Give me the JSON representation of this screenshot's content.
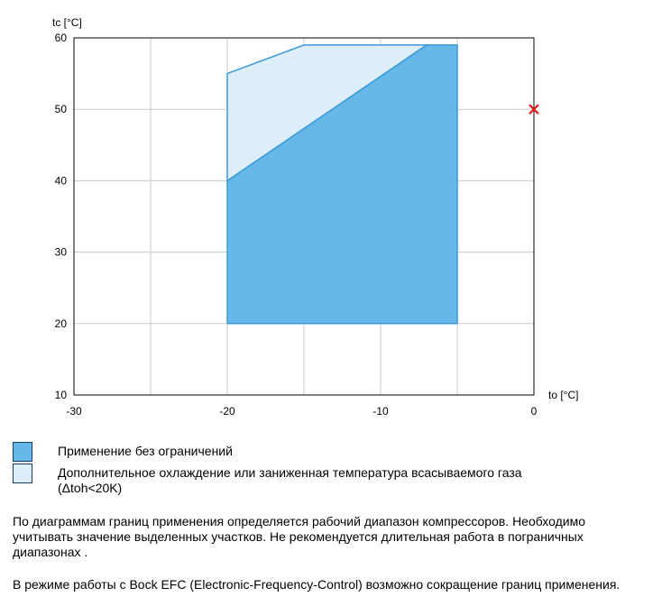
{
  "chart_data": {
    "type": "area",
    "xlabel": "to [°C]",
    "ylabel": "tc [°C]",
    "xlim": [
      -30,
      0
    ],
    "ylim": [
      10,
      60
    ],
    "xticks": [
      -30,
      -20,
      -10,
      0
    ],
    "yticks": [
      10,
      20,
      30,
      40,
      50,
      60
    ],
    "xgrid": [
      -25,
      -20,
      -15,
      -10,
      -5
    ],
    "ygrid": [
      20,
      30,
      40,
      50
    ],
    "grid": true,
    "regions": [
      {
        "name": "Применение без ограничений",
        "color": "#66b8e8",
        "points": [
          [
            -20,
            20
          ],
          [
            -5,
            20
          ],
          [
            -5,
            59
          ],
          [
            -7,
            59
          ],
          [
            -20,
            40
          ]
        ]
      },
      {
        "name": "Дополнительное охлаждение или заниженная температура всасываемого газа (Δtoh<20K)",
        "color": "#ddeefa",
        "points": [
          [
            -20,
            40
          ],
          [
            -7,
            59
          ],
          [
            -15,
            59
          ],
          [
            -20,
            55
          ]
        ]
      }
    ],
    "marker": {
      "x": 0,
      "y": 50,
      "symbol": "×",
      "color": "#e32020"
    }
  },
  "legend": [
    {
      "label": "Применение без ограничений",
      "color": "#66b8e8"
    },
    {
      "label": "Дополнительное охлаждение или заниженная температура всасываемого газа",
      "label2": "(Δtoh<20K)",
      "color": "#ddeefa"
    }
  ],
  "notes": {
    "p1_line1": "По диаграммам границ применения определяется рабочий диапазон компрессоров. Необходимо",
    "p1_line2": "учитывать значение выделенных участков. Не рекомендуется длительная работа в пограничных",
    "p1_line3": "диапазонах .",
    "p2": "В режиме работы с Bock EFC (Electronic-Frequency-Control) возможно сокращение границ применения."
  }
}
